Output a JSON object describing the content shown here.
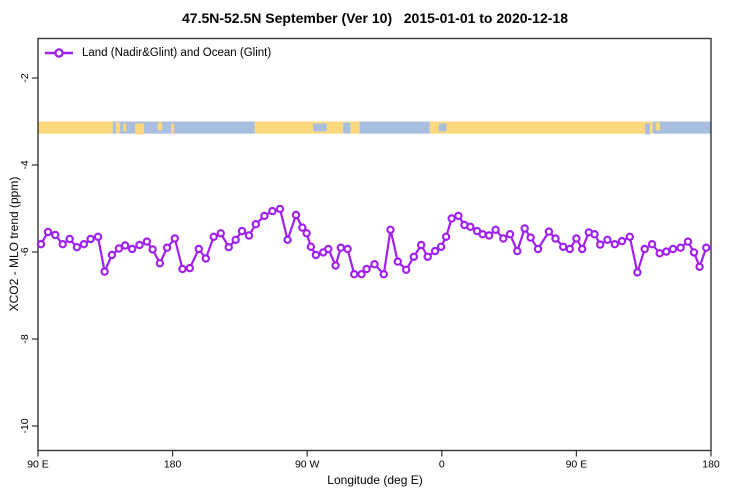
{
  "title": "47.5N-52.5N September (Ver 10)   2015-01-01 to 2020-12-18",
  "legend": {
    "label": "Land (Nadir&Glint) and Ocean (Glint)"
  },
  "axes": {
    "x": {
      "label": "Longitude (deg E)",
      "range": [
        90,
        540
      ],
      "ticks": [
        {
          "lon": 90,
          "label": "90 E"
        },
        {
          "lon": 180,
          "label": "180"
        },
        {
          "lon": 270,
          "label": "90 W"
        },
        {
          "lon": 360,
          "label": "0"
        },
        {
          "lon": 450,
          "label": "90 E"
        },
        {
          "lon": 540,
          "label": "180"
        }
      ]
    },
    "y": {
      "label": "XCO2 - MLO trend (ppm)",
      "range": [
        -10.6,
        -1.1
      ],
      "ticks": [
        {
          "value": -2,
          "label": "-2"
        },
        {
          "value": -4,
          "label": "-4"
        },
        {
          "value": -6,
          "label": "-6"
        },
        {
          "value": -8,
          "label": "-8"
        },
        {
          "value": -10,
          "label": "-10"
        }
      ]
    }
  },
  "colors": {
    "line": "#A020F0",
    "marker_fill": "#ffffff",
    "land": "#FCD97F",
    "ocean": "#A8BEDE",
    "box": "#333333",
    "text": "#000000"
  },
  "chart_data": {
    "type": "line",
    "title": "47.5N-52.5N September (Ver 10)   2015-01-01 to 2020-12-18",
    "xlabel": "Longitude (deg E)",
    "ylabel": "XCO2 - MLO trend (ppm)",
    "xlim": [
      90,
      540
    ],
    "ylim": [
      -10.6,
      -1.1
    ],
    "grid": false,
    "legend_position": "top-left",
    "series": [
      {
        "name": "Land (Nadir&Glint) and Ocean (Glint)",
        "x": [
          92,
          96.7,
          101.6,
          106.5,
          111.2,
          116,
          120.7,
          125.2,
          130.1,
          134.5,
          139.4,
          144.1,
          148.3,
          153,
          157.9,
          162.8,
          166.6,
          171.5,
          176.3,
          181.5,
          186.6,
          191.5,
          197.5,
          202.2,
          207.5,
          212.2,
          217.5,
          222.2,
          226.4,
          231.1,
          235.6,
          241.4,
          246.7,
          251.8,
          256.9,
          262.5,
          266.7,
          269.6,
          272.5,
          275.8,
          280.7,
          284.1,
          289,
          292.5,
          297,
          301.4,
          306.3,
          309.7,
          315,
          321.2,
          325.7,
          330.6,
          336.2,
          341.3,
          346.2,
          350.6,
          355.5,
          359.5,
          362.9,
          366.6,
          371.1,
          375.1,
          379.1,
          383.6,
          387.3,
          391.6,
          396,
          401.1,
          405.6,
          410.5,
          415.4,
          419.4,
          424.3,
          431.6,
          436,
          441.2,
          445.6,
          450,
          453.9,
          458.3,
          462.1,
          465.9,
          470.7,
          475.7,
          480.5,
          485.7,
          490.8,
          495.7,
          500.6,
          505.7,
          510.1,
          514.6,
          519.7,
          524.6,
          528.6,
          532.4,
          536.8
        ],
        "values": [
          -5.82,
          -5.54,
          -5.61,
          -5.82,
          -5.7,
          -5.89,
          -5.82,
          -5.7,
          -5.65,
          -6.45,
          -6.07,
          -5.92,
          -5.85,
          -5.93,
          -5.84,
          -5.76,
          -5.94,
          -6.26,
          -5.9,
          -5.69,
          -6.39,
          -6.37,
          -5.93,
          -6.15,
          -5.65,
          -5.57,
          -5.89,
          -5.72,
          -5.52,
          -5.62,
          -5.36,
          -5.17,
          -5.06,
          -5.01,
          -5.72,
          -5.15,
          -5.44,
          -5.57,
          -5.88,
          -6.07,
          -6.01,
          -5.93,
          -6.31,
          -5.9,
          -5.93,
          -6.51,
          -6.51,
          -6.39,
          -6.28,
          -6.51,
          -5.49,
          -6.22,
          -6.41,
          -6.11,
          -5.84,
          -6.11,
          -5.98,
          -5.88,
          -5.65,
          -5.23,
          -5.17,
          -5.38,
          -5.42,
          -5.52,
          -5.59,
          -5.62,
          -5.49,
          -5.69,
          -5.59,
          -5.98,
          -5.46,
          -5.67,
          -5.93,
          -5.53,
          -5.69,
          -5.88,
          -5.93,
          -5.69,
          -5.93,
          -5.55,
          -5.59,
          -5.83,
          -5.72,
          -5.82,
          -5.75,
          -5.65,
          -6.47,
          -5.93,
          -5.82,
          -6.03,
          -5.99,
          -5.93,
          -5.9,
          -5.76,
          -6.01,
          -6.34,
          -5.9
        ]
      }
    ],
    "land_ocean_band": {
      "description": "strip showing surface type vs longitude",
      "value_top": -3.0,
      "value_bottom": -3.28,
      "segments": [
        {
          "from": 90,
          "to": 140,
          "type": "land"
        },
        {
          "from": 140,
          "to": 235,
          "type": "ocean"
        },
        {
          "from": 235,
          "to": 305,
          "type": "land"
        },
        {
          "from": 305,
          "to": 352,
          "type": "ocean"
        },
        {
          "from": 352,
          "to": 501,
          "type": "land"
        },
        {
          "from": 501,
          "to": 540,
          "type": "ocean"
        }
      ],
      "flecks": [
        {
          "from": 142,
          "to": 145,
          "type": "land"
        },
        {
          "from": 147,
          "to": 149,
          "type": "land"
        },
        {
          "from": 155,
          "to": 161,
          "type": "land"
        },
        {
          "from": 170,
          "to": 173,
          "type": "land"
        },
        {
          "from": 179,
          "to": 181,
          "type": "land"
        },
        {
          "from": 274,
          "to": 283,
          "type": "ocean"
        },
        {
          "from": 294,
          "to": 299,
          "type": "ocean"
        },
        {
          "from": 358,
          "to": 363,
          "type": "ocean"
        },
        {
          "from": 496,
          "to": 499,
          "type": "ocean"
        },
        {
          "from": 503,
          "to": 506,
          "type": "land"
        }
      ]
    }
  }
}
